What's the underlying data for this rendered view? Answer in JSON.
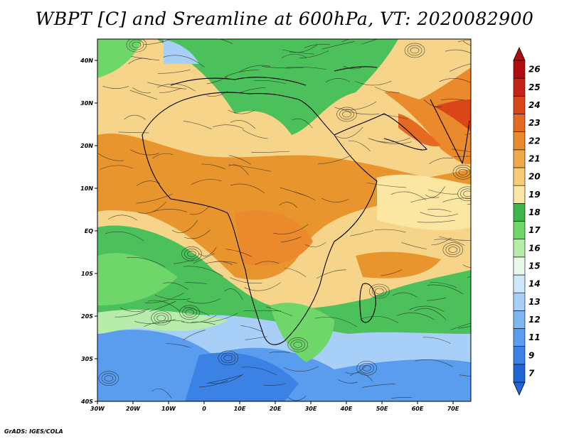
{
  "title": "WBPT [C] and Sreamline at 600hPa, VT: 2020082900",
  "footer": "GrADS: IGES/COLA",
  "map": {
    "lat_labels": [
      "40N",
      "30N",
      "20N",
      "10N",
      "EQ",
      "10S",
      "20S",
      "30S",
      "40S"
    ],
    "lat_values": [
      40,
      30,
      20,
      10,
      0,
      -10,
      -20,
      -30,
      -40
    ],
    "lon_labels": [
      "30W",
      "20W",
      "10W",
      "0",
      "10E",
      "20E",
      "30E",
      "40E",
      "50E",
      "60E",
      "70E"
    ],
    "lon_values": [
      -30,
      -20,
      -10,
      0,
      10,
      20,
      30,
      40,
      50,
      60,
      70
    ],
    "lat_range": [
      -40,
      45
    ],
    "lon_range": [
      -30,
      75
    ]
  },
  "colorbar": {
    "labels": [
      "7",
      "9",
      "11",
      "12",
      "13",
      "14",
      "15",
      "16",
      "17",
      "18",
      "19",
      "20",
      "21",
      "22",
      "23",
      "24",
      "25",
      "26"
    ],
    "colors": [
      "#2166d6",
      "#3b82e4",
      "#5a9cee",
      "#7fb6f4",
      "#a7cff8",
      "#cfe7fb",
      "#eaf8ea",
      "#b7ecaa",
      "#6fd66a",
      "#3cb54b",
      "#fbe7a1",
      "#f6cc78",
      "#f0a94a",
      "#ea8a2c",
      "#e46a1f",
      "#d9461a",
      "#c42417",
      "#b00d12"
    ]
  },
  "fields": {
    "colors_used": {
      "ocean_cool": "#5a9cee",
      "green": "#4cc05a",
      "yellow": "#f6d48a",
      "orange": "#e8952e",
      "red": "#d9461a"
    }
  }
}
